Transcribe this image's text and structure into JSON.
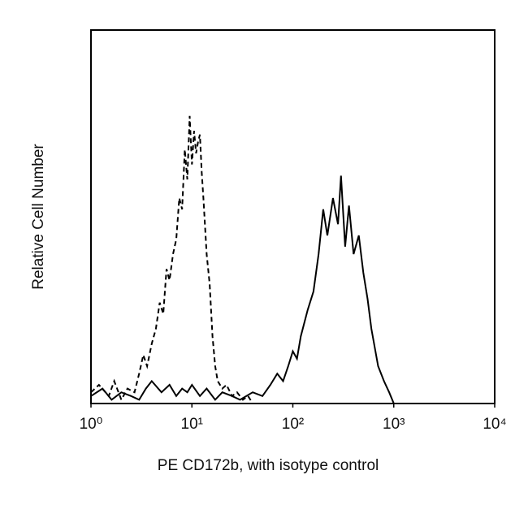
{
  "chart_data": {
    "type": "line",
    "xlabel": "PE CD172b, with isotype control",
    "ylabel": "Relative Cell Number",
    "xscale": "log",
    "xlim": [
      1,
      10000
    ],
    "xticks": [
      {
        "value": 1,
        "label": "10⁰"
      },
      {
        "value": 10,
        "label": "10¹"
      },
      {
        "value": 100,
        "label": "10²"
      },
      {
        "value": 1000,
        "label": "10³"
      },
      {
        "value": 10000,
        "label": "10⁴"
      }
    ],
    "ylim": [
      0,
      100
    ],
    "series": [
      {
        "color": "#000000",
        "dashed": true,
        "x": [
          1,
          1.2,
          1.5,
          1.7,
          2,
          2.3,
          2.7,
          3,
          3.3,
          3.6,
          4,
          4.4,
          4.8,
          5.2,
          5.6,
          6,
          6.5,
          7,
          7.5,
          8,
          8.5,
          9,
          9.5,
          10,
          10.5,
          11,
          11.5,
          12,
          12.5,
          13,
          14,
          15,
          16,
          17,
          18,
          20,
          22,
          25,
          28,
          32,
          36,
          40
        ],
        "values": [
          3,
          5,
          2,
          6,
          1,
          4,
          3,
          8,
          13,
          10,
          16,
          20,
          27,
          24,
          36,
          33,
          40,
          44,
          55,
          52,
          68,
          60,
          77,
          64,
          73,
          67,
          70,
          72,
          62,
          55,
          40,
          32,
          18,
          10,
          6,
          4,
          5,
          2,
          3,
          1,
          2,
          0
        ]
      },
      {
        "color": "#000000",
        "dashed": false,
        "x": [
          1,
          1.3,
          1.6,
          2,
          2.5,
          3,
          3.5,
          4,
          5,
          6,
          7,
          8,
          9,
          10,
          12,
          14,
          17,
          20,
          25,
          30,
          40,
          50,
          60,
          70,
          80,
          90,
          100,
          110,
          120,
          140,
          160,
          180,
          200,
          220,
          250,
          280,
          300,
          330,
          360,
          400,
          450,
          500,
          550,
          600,
          700,
          800,
          900,
          1000
        ],
        "values": [
          2,
          4,
          1,
          3,
          2,
          1,
          4,
          6,
          3,
          5,
          2,
          4,
          3,
          5,
          2,
          4,
          1,
          3,
          2,
          1,
          3,
          2,
          5,
          8,
          6,
          10,
          14,
          12,
          18,
          25,
          30,
          40,
          52,
          45,
          55,
          48,
          61,
          42,
          53,
          40,
          45,
          35,
          28,
          20,
          10,
          6,
          3,
          0
        ]
      }
    ]
  }
}
